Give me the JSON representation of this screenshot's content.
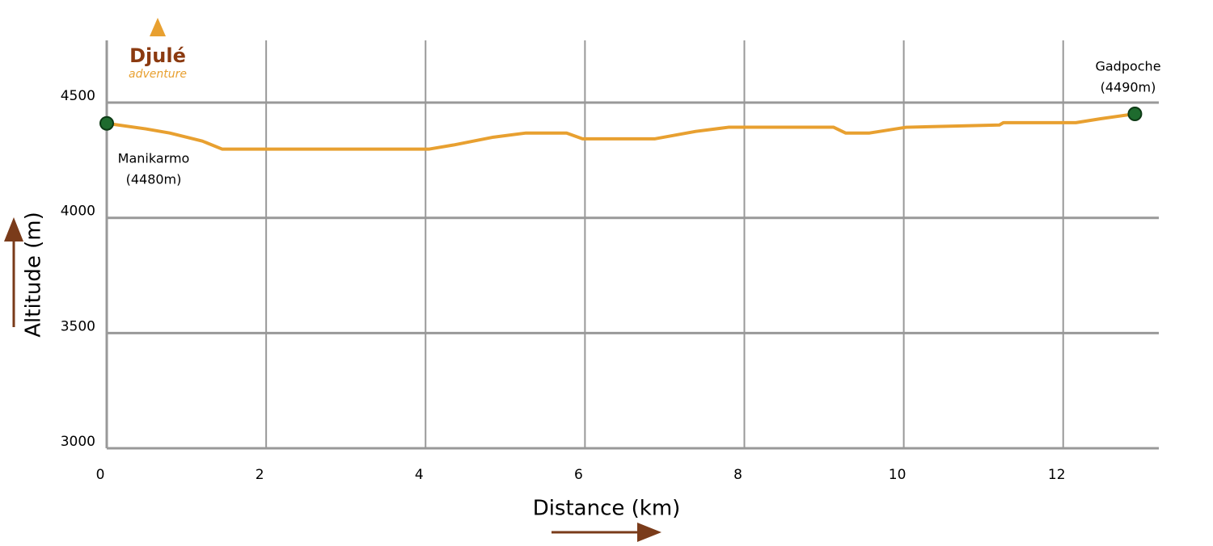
{
  "chart_data": {
    "type": "line",
    "brand": {
      "name": "Djulé",
      "tagline": "adventure"
    },
    "x_label": "Distance (km)",
    "y_label": "Altitude (m)",
    "x": [
      0,
      0.49,
      0.79,
      1.2,
      1.45,
      4.04,
      4.35,
      4.85,
      5.26,
      5.77,
      5.97,
      6.88,
      7.39,
      7.8,
      9.12,
      9.27,
      9.57,
      10.03,
      11.2,
      11.25,
      12.16,
      12.47,
      12.9
    ],
    "series": [
      {
        "name": "Altitude",
        "color": "#e8a030",
        "values": [
          4410,
          4386,
          4368,
          4333,
          4298,
          4298,
          4316,
          4350,
          4368,
          4368,
          4343,
          4343,
          4375,
          4393,
          4393,
          4368,
          4368,
          4393,
          4403,
          4413,
          4413,
          4430,
          4451
        ]
      }
    ],
    "marker_color": "#1e6b2e",
    "annotations": [
      {
        "lines": [
          "Manikarmo",
          "(4480m)"
        ]
      },
      {
        "lines": [
          "Gadpoche",
          "(4490m)"
        ]
      }
    ],
    "xlim": [
      0,
      13.2
    ],
    "ylim": [
      3000,
      4770
    ],
    "xticks": [
      0,
      2,
      4,
      6,
      8,
      10,
      12
    ],
    "yticks": [
      3000,
      3500,
      4000,
      4500
    ],
    "grid": true
  }
}
